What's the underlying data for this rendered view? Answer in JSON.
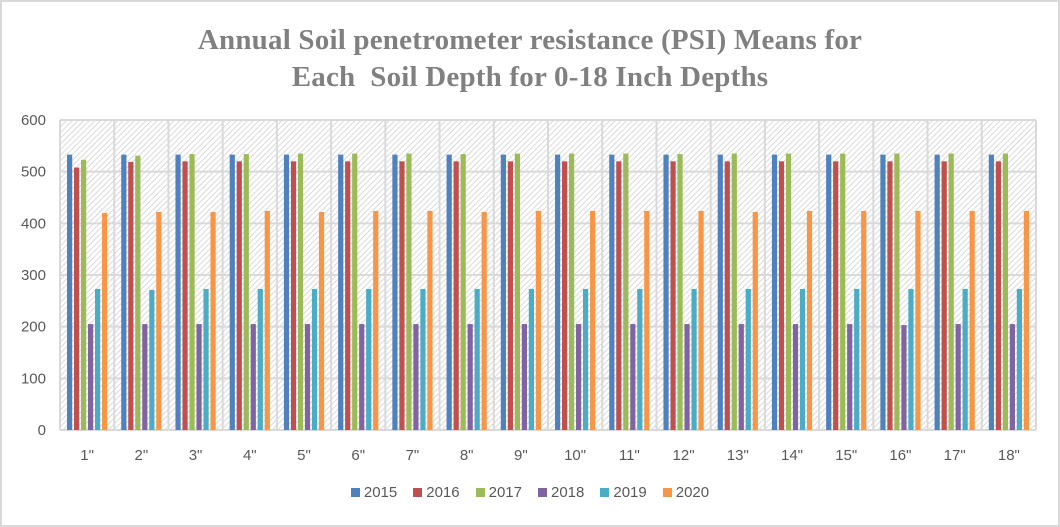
{
  "chart_data": {
    "type": "bar",
    "title": "Annual Soil penetrometer resistance (PSI) Means for",
    "subtitle": "Each  Soil Depth for 0-18 Inch Depths",
    "xlabel": "",
    "ylabel": "",
    "ylim": [
      0,
      600
    ],
    "yticks": [
      0,
      100,
      200,
      300,
      400,
      500,
      600
    ],
    "grid": true,
    "legend_position": "bottom",
    "categories": [
      "1\"",
      "2\"",
      "3\"",
      "4\"",
      "5\"",
      "6\"",
      "7\"",
      "8\"",
      "9\"",
      "10\"",
      "11\"",
      "12\"",
      "13\"",
      "14\"",
      "15\"",
      "16\"",
      "17\"",
      "18\""
    ],
    "series": [
      {
        "name": "2015",
        "color": "#4f81bd",
        "values": [
          533,
          533,
          533,
          533,
          533,
          533,
          533,
          533,
          533,
          533,
          533,
          533,
          533,
          533,
          533,
          533,
          533,
          533
        ]
      },
      {
        "name": "2016",
        "color": "#c0504d",
        "values": [
          508,
          519,
          520,
          520,
          520,
          520,
          520,
          520,
          520,
          520,
          520,
          520,
          520,
          520,
          520,
          520,
          520,
          520
        ]
      },
      {
        "name": "2017",
        "color": "#9bbb59",
        "values": [
          523,
          531,
          534,
          534,
          535,
          535,
          535,
          534,
          535,
          535,
          535,
          534,
          535,
          535,
          535,
          535,
          535,
          535
        ]
      },
      {
        "name": "2018",
        "color": "#8064a2",
        "values": [
          205,
          205,
          205,
          205,
          205,
          205,
          205,
          205,
          205,
          205,
          205,
          205,
          205,
          205,
          205,
          203,
          205,
          205
        ]
      },
      {
        "name": "2019",
        "color": "#4bacc6",
        "values": [
          273,
          271,
          273,
          273,
          273,
          273,
          273,
          273,
          273,
          273,
          273,
          273,
          273,
          273,
          273,
          273,
          273,
          273
        ]
      },
      {
        "name": "2020",
        "color": "#f79646",
        "values": [
          420,
          422,
          422,
          424,
          422,
          424,
          424,
          422,
          424,
          424,
          424,
          424,
          422,
          424,
          424,
          424,
          424,
          424
        ]
      }
    ]
  }
}
